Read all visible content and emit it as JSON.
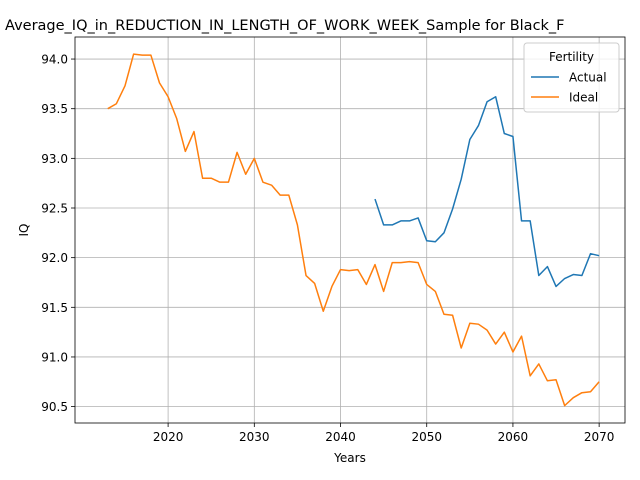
{
  "chart_data": {
    "type": "line",
    "title": "Average_IQ_in_REDUCTION_IN_LENGTH_OF_WORK_WEEK_Sample for Black_F",
    "xlabel": "Years",
    "ylabel": "IQ",
    "xlim": [
      2009.2,
      2073.0
    ],
    "ylim": [
      90.335,
      94.222
    ],
    "xticks": [
      2020,
      2030,
      2040,
      2050,
      2060,
      2070
    ],
    "yticks": [
      90.5,
      91.0,
      91.5,
      92.0,
      92.5,
      93.0,
      93.5,
      94.0
    ],
    "xtick_labels": [
      "2020",
      "2030",
      "2040",
      "2050",
      "2060",
      "2070"
    ],
    "ytick_labels": [
      "90.5",
      "91.0",
      "91.5",
      "92.0",
      "92.5",
      "93.0",
      "93.5",
      "94.0"
    ],
    "grid": true,
    "legend": {
      "title": "Fertility",
      "placement": "top-right"
    },
    "series": [
      {
        "name": "Actual",
        "color": "#1f77b4",
        "x": [
          2044,
          2045,
          2046,
          2047,
          2048,
          2049,
          2050,
          2051,
          2052,
          2053,
          2054,
          2055,
          2056,
          2057,
          2058,
          2059,
          2060,
          2061,
          2062,
          2063,
          2064,
          2065,
          2066,
          2067,
          2068,
          2069,
          2070
        ],
        "y": [
          92.59,
          92.33,
          92.33,
          92.37,
          92.37,
          92.4,
          92.17,
          92.16,
          92.25,
          92.49,
          92.79,
          93.19,
          93.33,
          93.57,
          93.62,
          93.25,
          93.22,
          92.37,
          92.37,
          91.82,
          91.91,
          91.71,
          91.79,
          91.83,
          91.82,
          92.04,
          92.02
        ]
      },
      {
        "name": "Ideal",
        "color": "#ff7f0e",
        "x": [
          2013,
          2014,
          2015,
          2016,
          2017,
          2018,
          2019,
          2020,
          2021,
          2022,
          2023,
          2024,
          2025,
          2026,
          2027,
          2028,
          2029,
          2030,
          2031,
          2032,
          2033,
          2034,
          2035,
          2036,
          2037,
          2038,
          2039,
          2040,
          2041,
          2042,
          2043,
          2044,
          2045,
          2046,
          2047,
          2048,
          2049,
          2050,
          2051,
          2052,
          2053,
          2054,
          2055,
          2056,
          2057,
          2058,
          2059,
          2060,
          2061,
          2062,
          2063,
          2064,
          2065,
          2066,
          2067,
          2068,
          2069,
          2070
        ],
        "y": [
          93.5,
          93.55,
          93.73,
          94.05,
          94.04,
          94.04,
          93.76,
          93.62,
          93.4,
          93.07,
          93.27,
          92.8,
          92.8,
          92.76,
          92.76,
          93.06,
          92.84,
          93.0,
          92.76,
          92.73,
          92.63,
          92.63,
          92.33,
          91.82,
          91.74,
          91.46,
          91.71,
          91.88,
          91.87,
          91.88,
          91.73,
          91.93,
          91.66,
          91.95,
          91.95,
          91.96,
          91.95,
          91.73,
          91.66,
          91.43,
          91.42,
          91.09,
          91.34,
          91.33,
          91.27,
          91.13,
          91.25,
          91.05,
          91.21,
          90.81,
          90.93,
          90.76,
          90.77,
          90.51,
          90.59,
          90.64,
          90.65,
          90.75
        ]
      }
    ]
  }
}
